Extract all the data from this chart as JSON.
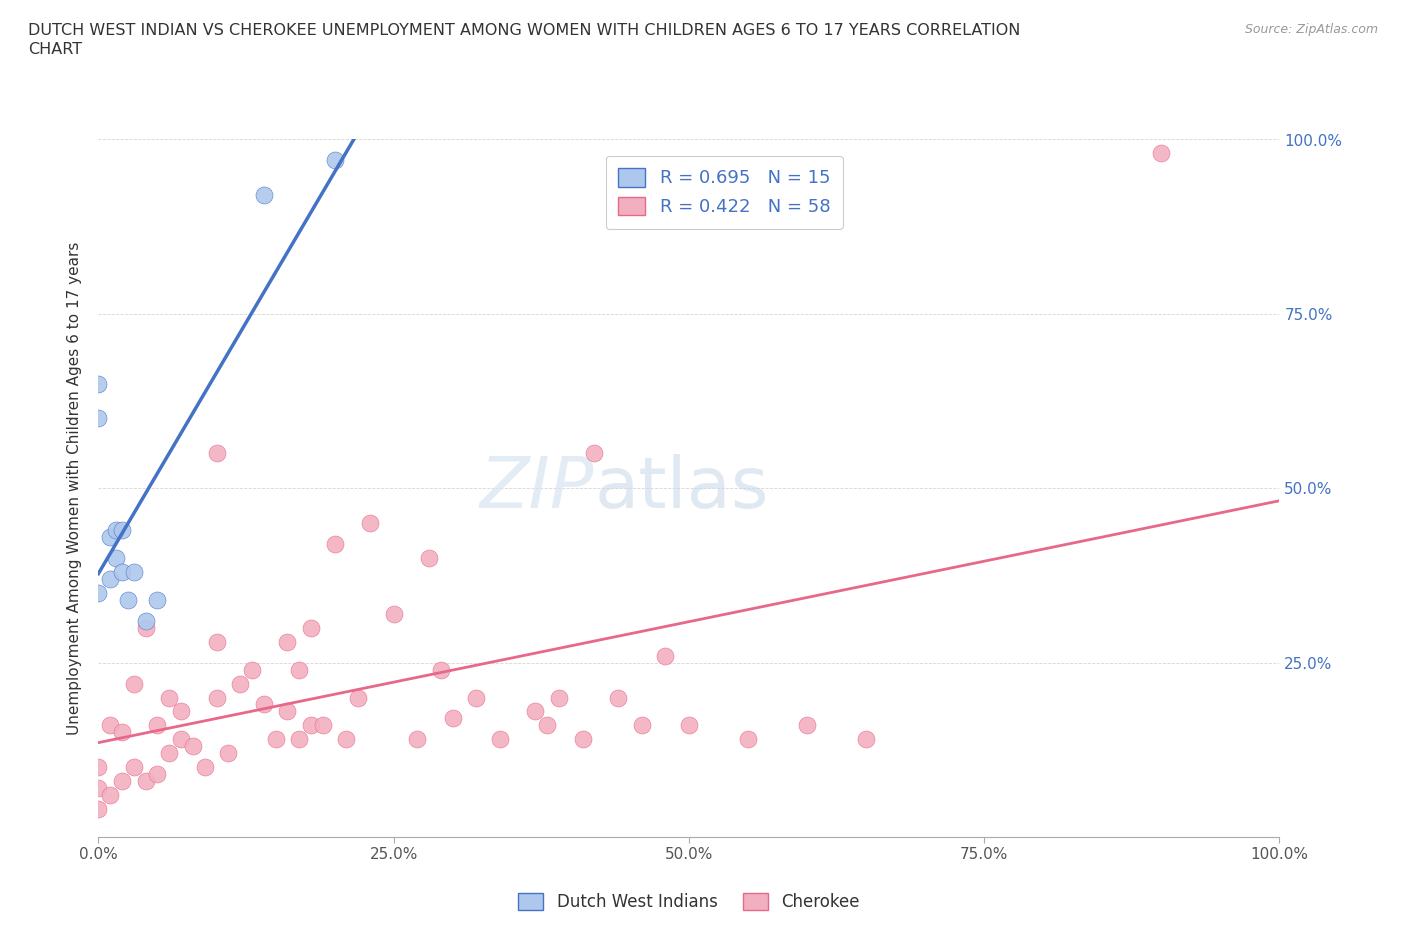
{
  "title_line1": "DUTCH WEST INDIAN VS CHEROKEE UNEMPLOYMENT AMONG WOMEN WITH CHILDREN AGES 6 TO 17 YEARS CORRELATION",
  "title_line2": "CHART",
  "source": "Source: ZipAtlas.com",
  "ylabel": "Unemployment Among Women with Children Ages 6 to 17 years",
  "xlim": [
    0,
    1.0
  ],
  "ylim": [
    0,
    1.0
  ],
  "xticks": [
    0.0,
    0.25,
    0.5,
    0.75,
    1.0
  ],
  "xticklabels": [
    "0.0%",
    "25.0%",
    "50.0%",
    "75.0%",
    "100.0%"
  ],
  "yticks": [
    0.0,
    0.25,
    0.5,
    0.75,
    1.0
  ],
  "ytick_right_labels": [
    "",
    "25.0%",
    "50.0%",
    "75.0%",
    "100.0%"
  ],
  "dwi_color": "#aec8ed",
  "cherokee_color": "#f2afc0",
  "trend_dwi_color": "#4472c4",
  "trend_cherokee_color": "#e8688a",
  "r_dwi": 0.695,
  "n_dwi": 15,
  "r_cherokee": 0.422,
  "n_cherokee": 58,
  "legend_r_color": "#4472c4",
  "watermark_zip": "ZIP",
  "watermark_atlas": "atlas",
  "dwi_x": [
    0.0,
    0.0,
    0.0,
    0.01,
    0.01,
    0.015,
    0.015,
    0.02,
    0.02,
    0.025,
    0.03,
    0.04,
    0.05,
    0.14,
    0.2
  ],
  "dwi_y": [
    0.6,
    0.65,
    0.35,
    0.43,
    0.37,
    0.4,
    0.44,
    0.38,
    0.44,
    0.34,
    0.38,
    0.31,
    0.34,
    0.92,
    0.97
  ],
  "cherokee_x": [
    0.0,
    0.0,
    0.0,
    0.01,
    0.01,
    0.02,
    0.02,
    0.03,
    0.03,
    0.04,
    0.04,
    0.05,
    0.05,
    0.06,
    0.06,
    0.07,
    0.07,
    0.08,
    0.09,
    0.1,
    0.1,
    0.1,
    0.11,
    0.12,
    0.13,
    0.14,
    0.15,
    0.16,
    0.16,
    0.17,
    0.17,
    0.18,
    0.18,
    0.19,
    0.2,
    0.21,
    0.22,
    0.23,
    0.25,
    0.27,
    0.28,
    0.29,
    0.3,
    0.32,
    0.34,
    0.37,
    0.38,
    0.39,
    0.41,
    0.42,
    0.44,
    0.46,
    0.48,
    0.5,
    0.55,
    0.6,
    0.65,
    0.9
  ],
  "cherokee_y": [
    0.04,
    0.07,
    0.1,
    0.06,
    0.16,
    0.08,
    0.15,
    0.1,
    0.22,
    0.08,
    0.3,
    0.09,
    0.16,
    0.12,
    0.2,
    0.14,
    0.18,
    0.13,
    0.1,
    0.2,
    0.28,
    0.55,
    0.12,
    0.22,
    0.24,
    0.19,
    0.14,
    0.18,
    0.28,
    0.14,
    0.24,
    0.16,
    0.3,
    0.16,
    0.42,
    0.14,
    0.2,
    0.45,
    0.32,
    0.14,
    0.4,
    0.24,
    0.17,
    0.2,
    0.14,
    0.18,
    0.16,
    0.2,
    0.14,
    0.55,
    0.2,
    0.16,
    0.26,
    0.16,
    0.14,
    0.16,
    0.14,
    0.98
  ]
}
